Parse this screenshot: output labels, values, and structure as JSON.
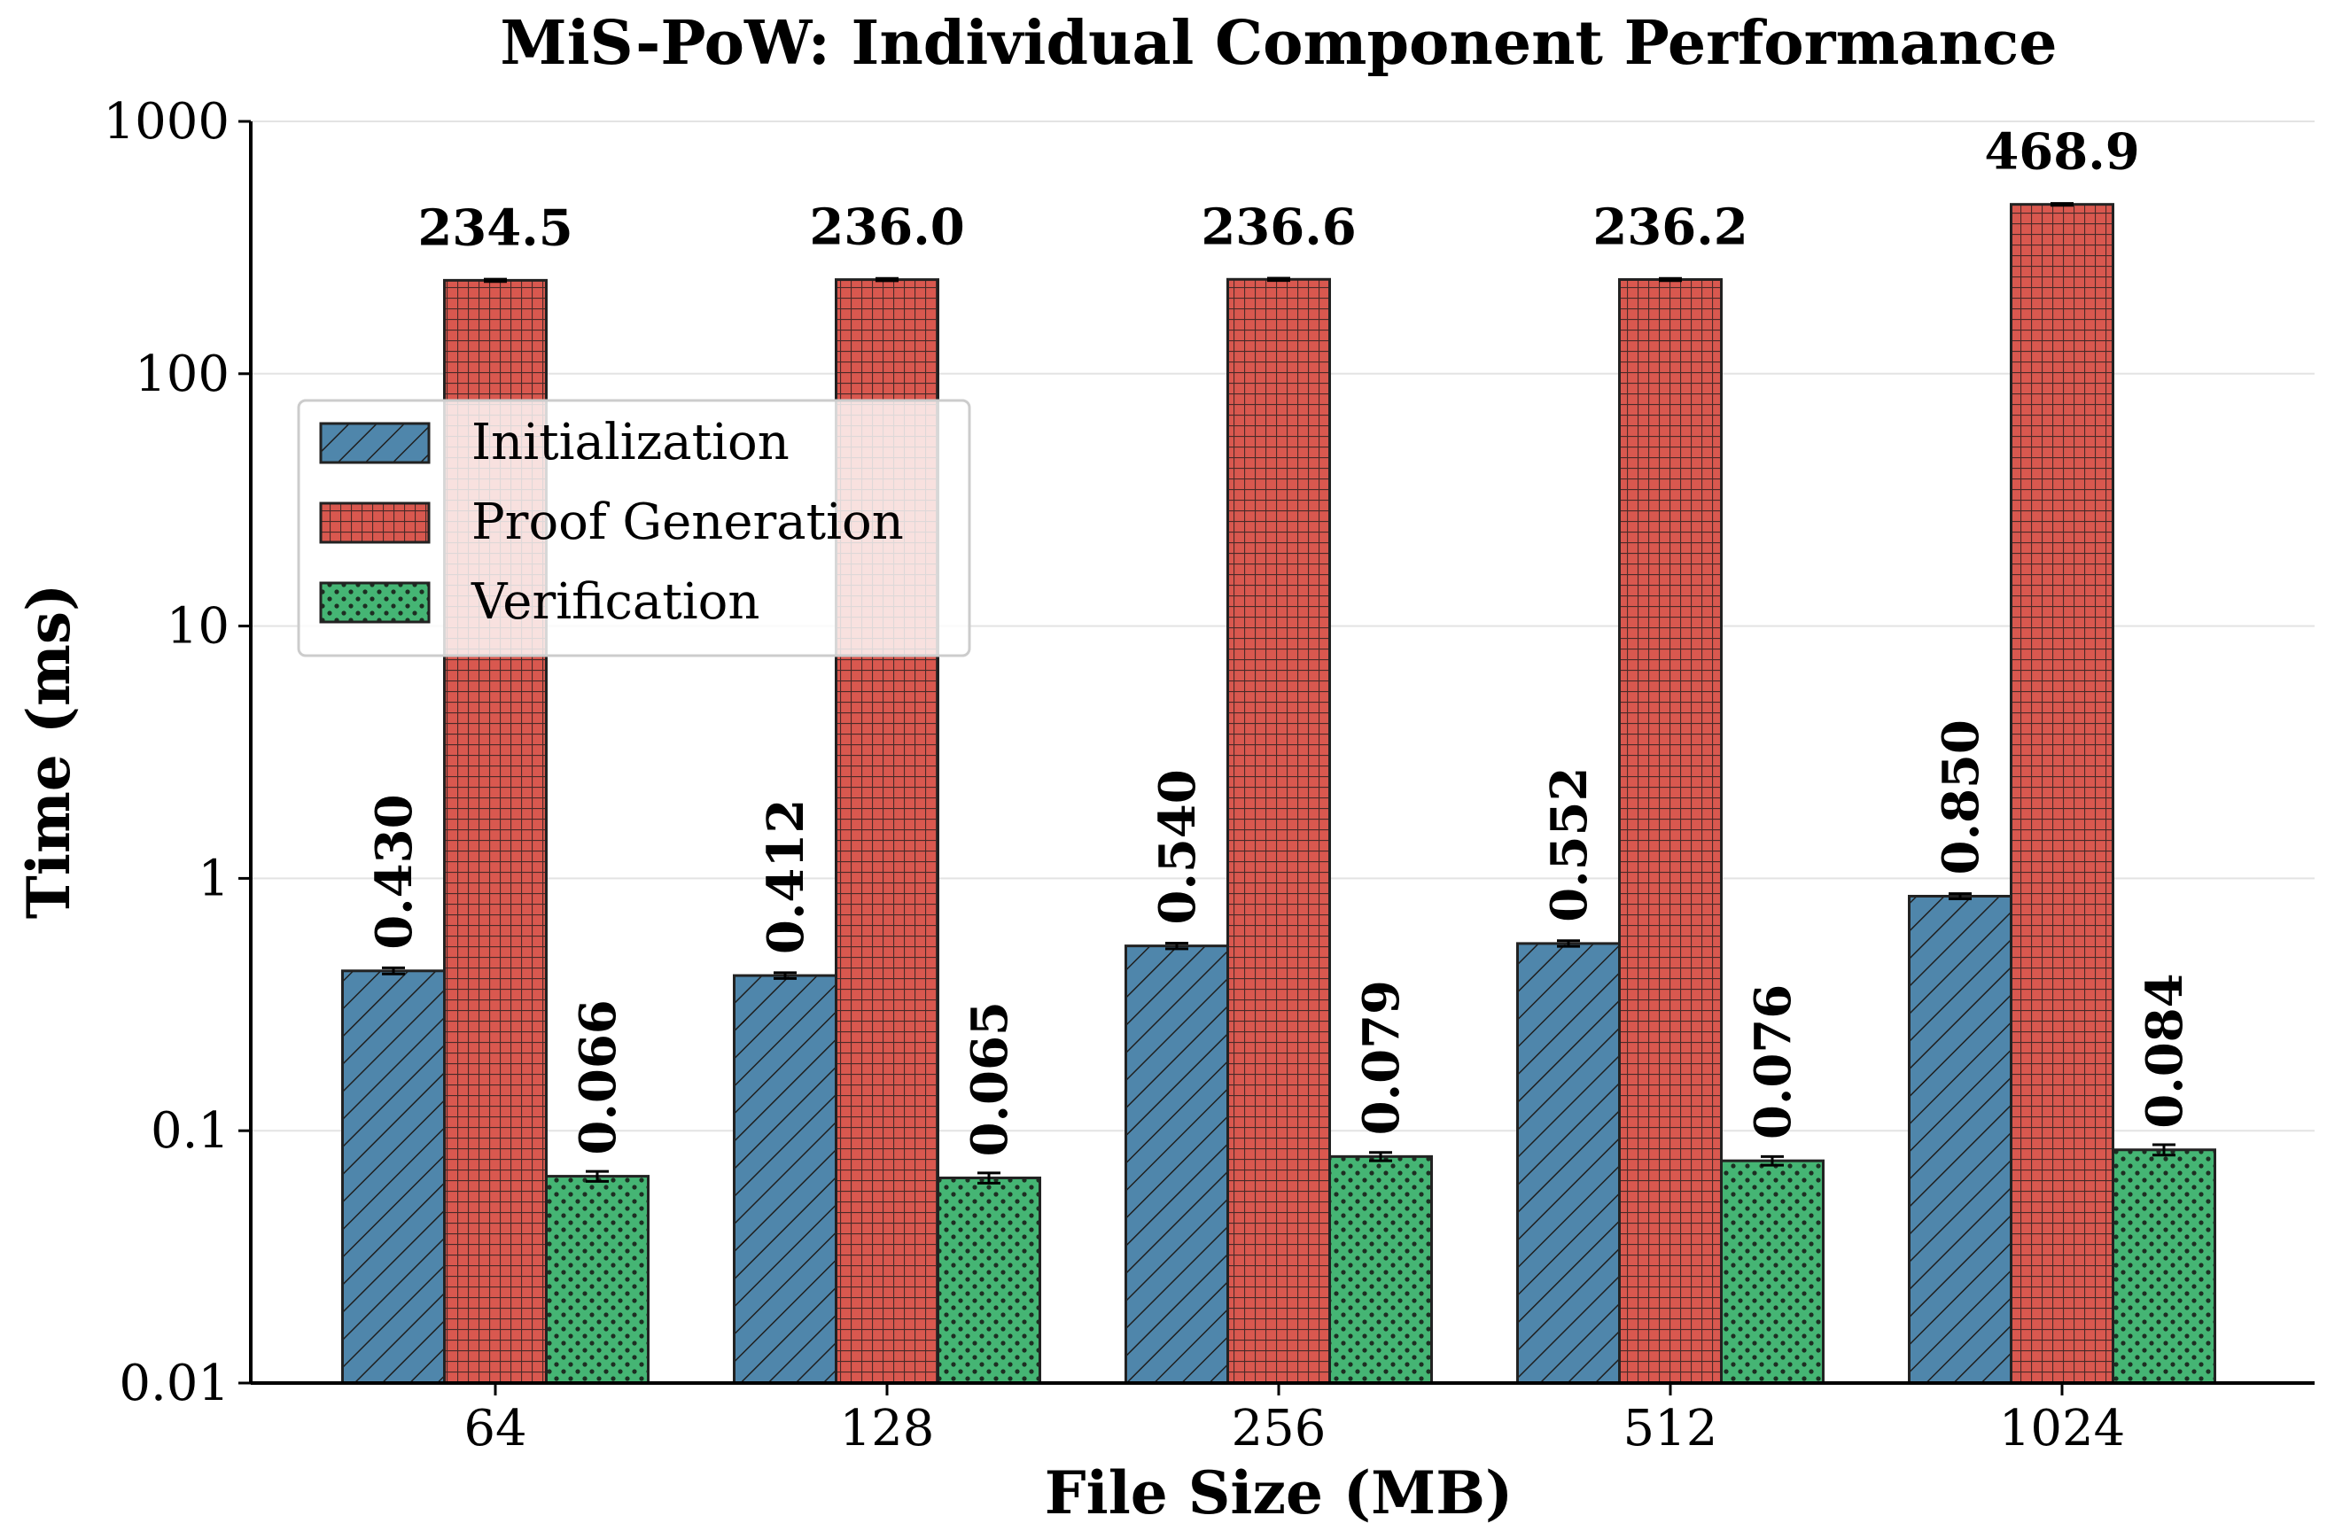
{
  "chart_data": {
    "type": "bar",
    "title": "MiS-PoW: Individual Component Performance",
    "xlabel": "File Size (MB)",
    "ylabel": "Time (ms)",
    "yscale": "log",
    "ylim": [
      0.01,
      1000
    ],
    "yticks": [
      0.01,
      0.1,
      1,
      10,
      100,
      1000
    ],
    "ytick_labels": [
      "0.01",
      "0.1",
      "1",
      "10",
      "100",
      "1000"
    ],
    "grid": "horizontal",
    "legend_position": "upper-left",
    "categories": [
      "64",
      "128",
      "256",
      "512",
      "1024"
    ],
    "series": [
      {
        "name": "Initialization",
        "color": "#4f86ab",
        "hatch": "diagonal",
        "values": [
          0.43,
          0.412,
          0.54,
          0.552,
          0.85
        ],
        "errors": [
          0.012,
          0.011,
          0.014,
          0.014,
          0.02
        ],
        "labels": [
          "0.430",
          "0.412",
          "0.540",
          "0.552",
          "0.850"
        ],
        "label_rotation": "vertical"
      },
      {
        "name": "Proof Generation",
        "color": "#d9584f",
        "hatch": "grid",
        "values": [
          234.5,
          236.0,
          236.6,
          236.2,
          468.9
        ],
        "errors": [
          2.5,
          2.5,
          2.5,
          2.5,
          4.0
        ],
        "labels": [
          "234.5",
          "236.0",
          "236.6",
          "236.2",
          "468.9"
        ],
        "label_rotation": "horizontal"
      },
      {
        "name": "Verification",
        "color": "#45b574",
        "hatch": "dots",
        "values": [
          0.066,
          0.065,
          0.079,
          0.076,
          0.084
        ],
        "errors": [
          0.003,
          0.003,
          0.003,
          0.003,
          0.004
        ],
        "labels": [
          "0.066",
          "0.065",
          "0.079",
          "0.076",
          "0.084"
        ],
        "label_rotation": "vertical"
      }
    ]
  }
}
